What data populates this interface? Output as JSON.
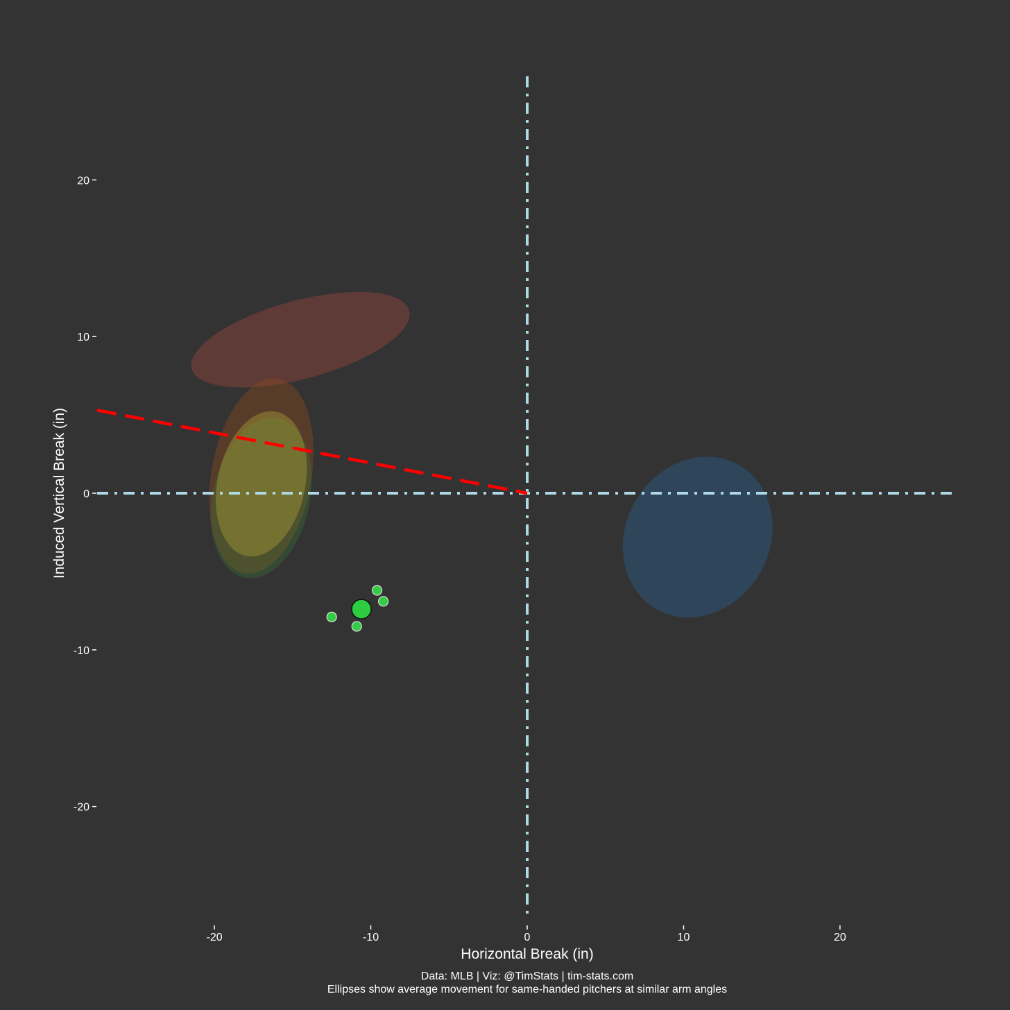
{
  "chart_data": {
    "type": "scatter",
    "xlabel": "Horizontal Break (in)",
    "ylabel": "Induced Vertical Break (in)",
    "xlim": [
      -27.5,
      27.5
    ],
    "ylim": [
      -27.5,
      27.5
    ],
    "x_ticks": [
      -20,
      -10,
      0,
      10,
      20
    ],
    "y_ticks": [
      -20,
      -10,
      0,
      10,
      20
    ],
    "x_tick_labels": [
      "-20",
      "-10",
      "0",
      "10",
      "20"
    ],
    "y_tick_labels": [
      "-20",
      "-10",
      "0",
      "10",
      "20"
    ],
    "grid": false,
    "background": "#333333",
    "caption_line1": "Data: MLB | Viz: @TimStats | tim-stats.com",
    "caption_line2": "Ellipses show average movement for same-handed pitchers at similar arm angles",
    "reference_lines": {
      "color": "#add8e6",
      "vertical_x": 0,
      "horizontal_y": 0,
      "style": "dash-dot"
    },
    "arm_angle_line": {
      "color": "#ff0000",
      "style": "dashed",
      "from": [
        -27.5,
        5.3
      ],
      "to": [
        0,
        0
      ]
    },
    "ellipses": [
      {
        "cx": -14.5,
        "cy": 9.8,
        "rx": 7.2,
        "ry": 2.5,
        "angle_deg": 15,
        "color": "#b84c3f",
        "opacity": 0.33
      },
      {
        "cx": -17.0,
        "cy": 1.1,
        "rx": 3.2,
        "ry": 6.3,
        "angle_deg": -10,
        "color": "#8b4a1e",
        "opacity": 0.42
      },
      {
        "cx": -17.0,
        "cy": -0.3,
        "rx": 3.1,
        "ry": 5.2,
        "angle_deg": -12,
        "color": "#3a8a3a",
        "opacity": 0.28
      },
      {
        "cx": -17.0,
        "cy": 0.6,
        "rx": 2.8,
        "ry": 4.7,
        "angle_deg": -12,
        "color": "#b1a636",
        "opacity": 0.4
      },
      {
        "cx": 10.9,
        "cy": -2.8,
        "rx": 4.6,
        "ry": 5.3,
        "angle_deg": -30,
        "color": "#2b5c8a",
        "opacity": 0.45
      }
    ],
    "points": [
      {
        "x": -9.6,
        "y": -6.2,
        "r": 7,
        "color": "#33cc44",
        "stroke": "#e0e0e0"
      },
      {
        "x": -9.2,
        "y": -6.9,
        "r": 7,
        "color": "#33cc44",
        "stroke": "#e0e0e0"
      },
      {
        "x": -12.5,
        "y": -7.9,
        "r": 7,
        "color": "#33cc44",
        "stroke": "#e0e0e0"
      },
      {
        "x": -10.9,
        "y": -8.5,
        "r": 7,
        "color": "#33cc44",
        "stroke": "#e0e0e0"
      },
      {
        "x": -10.6,
        "y": -7.4,
        "r": 14,
        "color": "#2ecc40",
        "stroke": "#111111"
      }
    ]
  }
}
